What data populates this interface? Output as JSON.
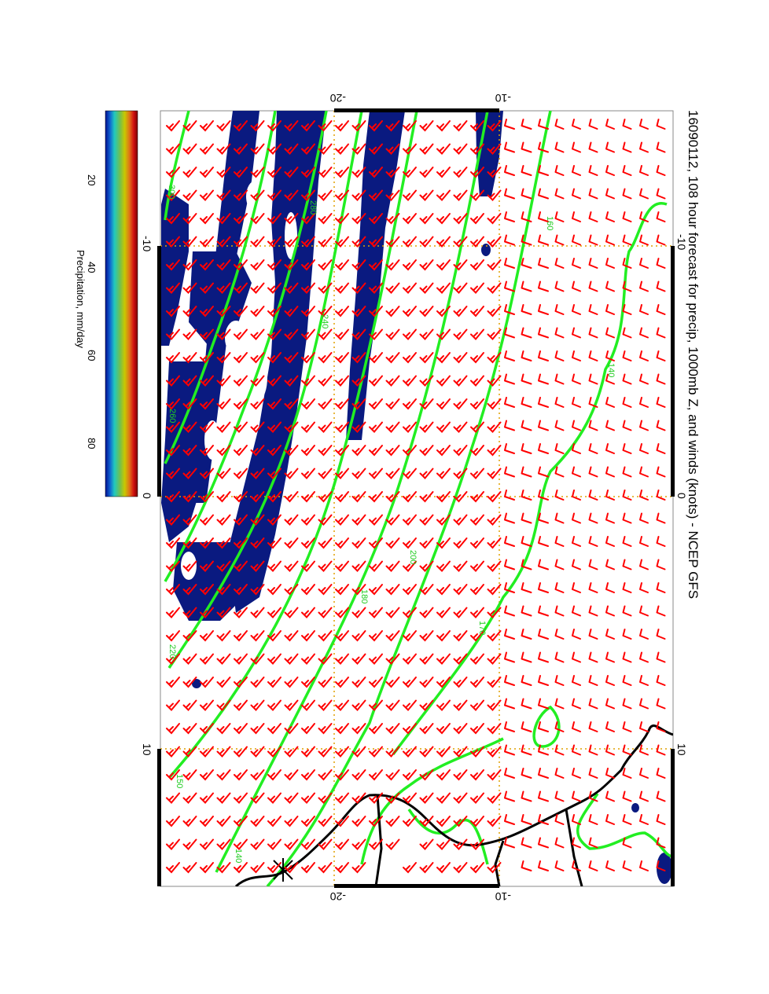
{
  "title": "16090112, 108 hour forecast for precip, 1000mb Z, and winds (knots) - NCEP GFS",
  "colorbar": {
    "label": "Precipitation, mm/day",
    "ticks": [
      "20",
      "40",
      "60",
      "80"
    ],
    "colors": [
      "#7a0000",
      "#d01010",
      "#e07018",
      "#c8c800",
      "#70c050",
      "#20c8c0",
      "#1060d0",
      "#001090"
    ]
  },
  "axes": {
    "lon_ticks": [
      "-10",
      "0",
      "10"
    ],
    "lat_ticks": [
      "-20",
      "-10"
    ]
  },
  "contours": {
    "color": "#22ee22",
    "labels": [
      "300",
      "160",
      "140",
      "280",
      "240",
      "260",
      "220",
      "200",
      "180",
      "170",
      "150",
      "140"
    ]
  },
  "colors": {
    "precip_fill": "#0a1a80",
    "wind_barbs": "#ff0000",
    "grid": "#e0a000",
    "coast": "#000000"
  }
}
